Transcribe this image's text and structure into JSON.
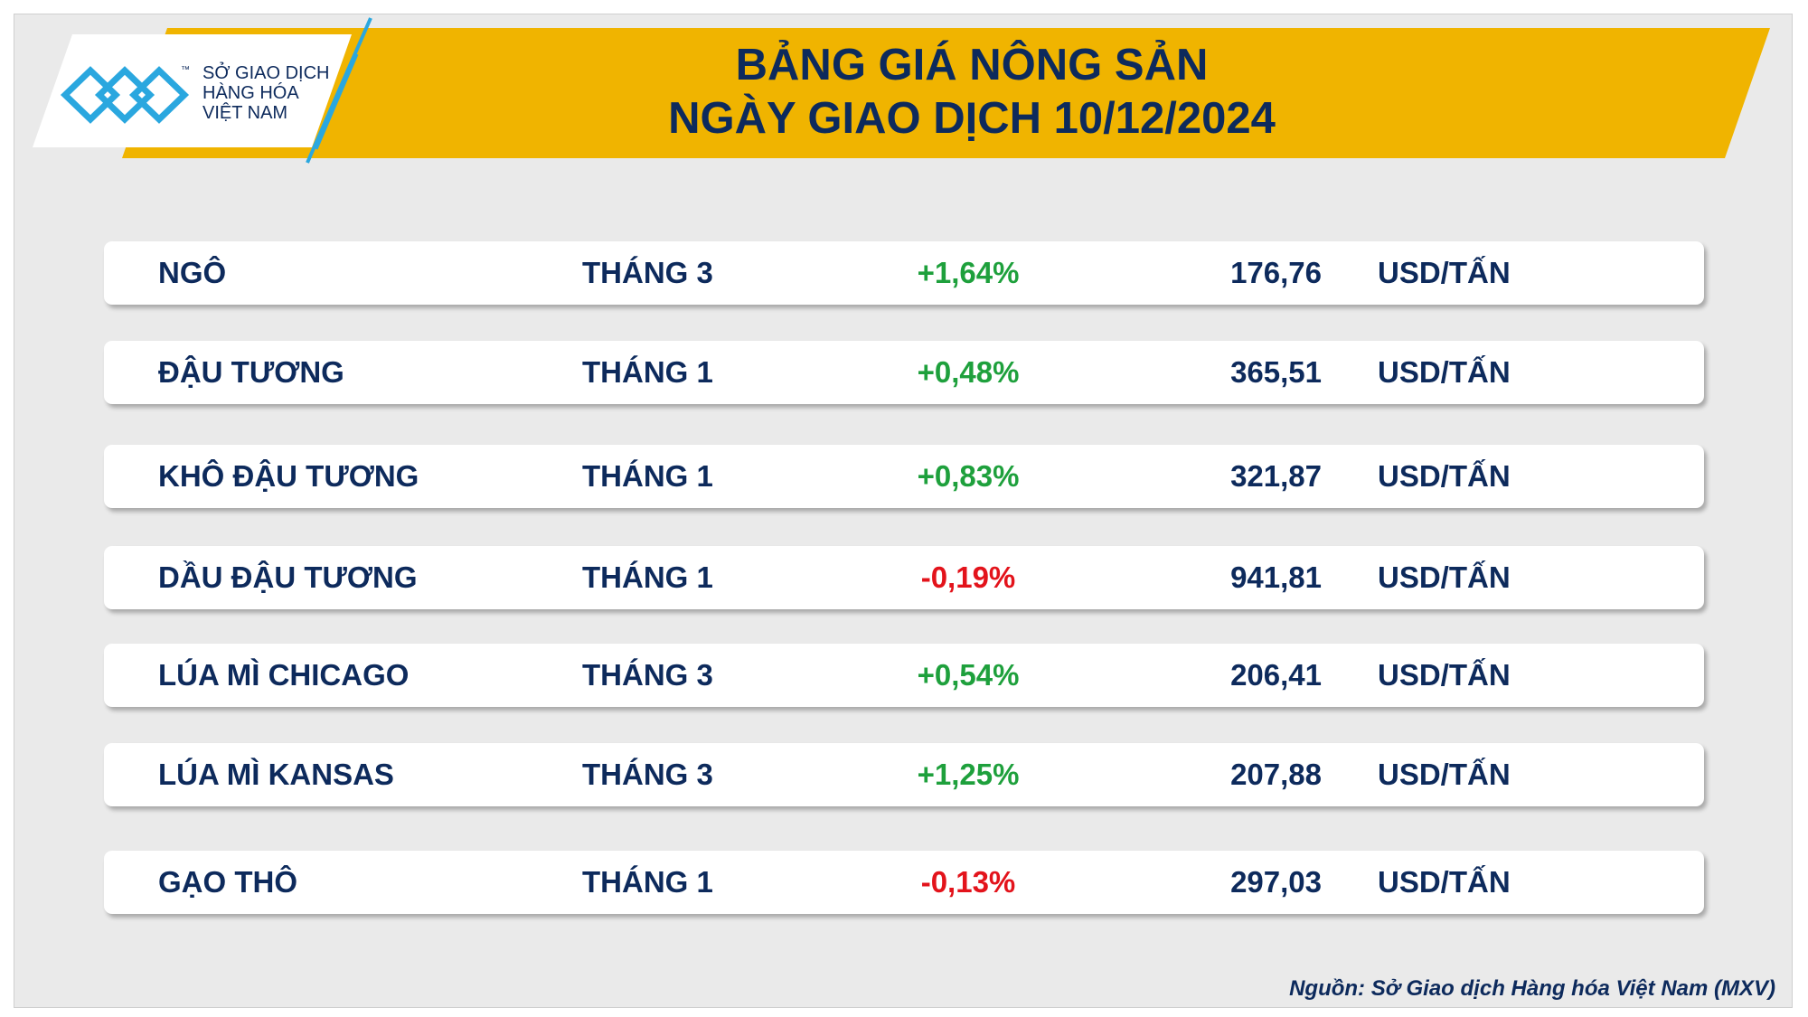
{
  "header": {
    "logo": {
      "lines": [
        "SỞ GIAO DỊCH",
        "HÀNG HÓA",
        "VIỆT NAM"
      ],
      "trademark": "™"
    },
    "title": [
      "BẢNG GIÁ NÔNG SẢN",
      "NGÀY GIAO DỊCH 10/12/2024"
    ]
  },
  "table": {
    "rows": [
      [
        "NGÔ",
        "THÁNG 3",
        "+1,64%",
        "176,76",
        "USD/TẤN"
      ],
      [
        "ĐẬU TƯƠNG",
        "THÁNG 1",
        "+0,48%",
        "365,51",
        "USD/TẤN"
      ],
      [
        "KHÔ ĐẬU TƯƠNG",
        "THÁNG 1",
        "+0,83%",
        "321,87",
        "USD/TẤN"
      ],
      [
        "DẦU ĐẬU TƯƠNG",
        "THÁNG 1",
        "-0,19%",
        "941,81",
        "USD/TẤN"
      ],
      [
        "LÚA MÌ CHICAGO",
        "THÁNG 3",
        "+0,54%",
        "206,41",
        "USD/TẤN"
      ],
      [
        "LÚA MÌ KANSAS",
        "THÁNG 3",
        "+1,25%",
        "207,88",
        "USD/TẤN"
      ],
      [
        "GẠO THÔ",
        "THÁNG 1",
        "-0,13%",
        "297,03",
        "USD/TẤN"
      ]
    ]
  },
  "source": "Nguồn: Sở Giao dịch Hàng hóa Việt Nam (MXV)"
}
